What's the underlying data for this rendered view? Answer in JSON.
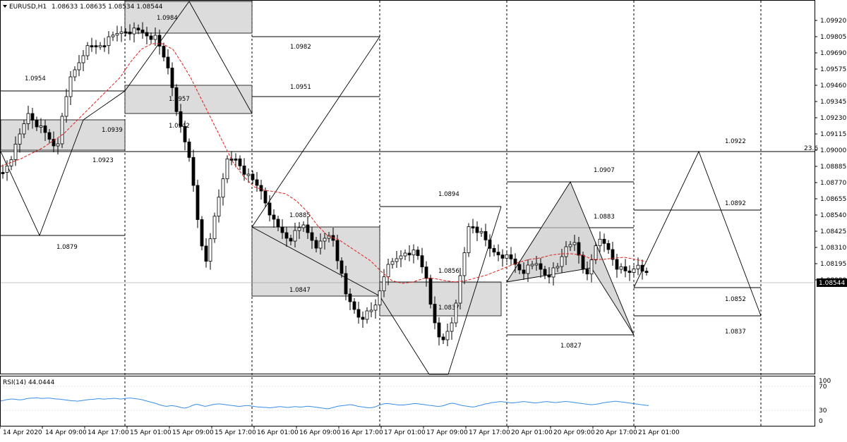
{
  "window": {
    "menu_icon": "triangle-down-icon",
    "symbol": "EURUSD,H1",
    "ohlc": "1.08633 1.08635 1.08534 1.08544"
  },
  "price_axis": {
    "ticks": [
      "1.09920",
      "1.09805",
      "1.09690",
      "1.09575",
      "1.09460",
      "1.09345",
      "1.09230",
      "1.09115",
      "1.09000",
      "1.08885",
      "1.08770",
      "1.08655",
      "1.08540",
      "1.08425",
      "1.08310",
      "1.08195",
      "1.08080"
    ],
    "current_price": "1.08544",
    "fib_tag": "23.6"
  },
  "time_axis": {
    "labels": [
      "14 Apr 2020",
      "14 Apr 09:00",
      "14 Apr 17:00",
      "15 Apr 01:00",
      "15 Apr 09:00",
      "15 Apr 17:00",
      "16 Apr 01:00",
      "16 Apr 09:00",
      "16 Apr 17:00",
      "17 Apr 01:00",
      "17 Apr 09:00",
      "17 Apr 17:00",
      "20 Apr 01:00",
      "20 Apr 09:00",
      "20 Apr 17:00",
      "21 Apr 01:00"
    ]
  },
  "rsi": {
    "label": "RSI(14) 44.0444",
    "ticks": [
      "100",
      "70",
      "30",
      "0"
    ],
    "values": [
      58,
      59,
      61,
      62,
      63,
      63,
      62,
      61,
      61,
      62,
      64,
      65,
      66,
      66,
      67,
      66,
      65,
      65,
      66,
      66,
      65,
      64,
      63,
      63,
      62,
      61,
      60,
      59,
      58,
      58,
      57,
      58,
      59,
      60,
      61,
      62,
      62,
      63,
      64,
      64,
      63,
      63,
      64,
      64,
      65,
      65,
      64,
      63,
      64,
      65,
      66,
      66,
      65,
      64,
      63,
      62,
      60,
      58,
      56,
      54,
      52,
      50,
      47,
      45,
      43,
      42,
      43,
      44,
      43,
      42,
      40,
      38,
      37,
      38,
      41,
      44,
      47,
      48,
      46,
      44,
      42,
      43,
      45,
      47,
      48,
      49,
      49,
      48,
      47,
      46,
      45,
      44,
      43,
      42,
      42,
      43,
      44,
      44,
      43,
      42,
      41,
      40,
      40,
      39,
      39,
      38,
      38,
      39,
      40,
      41,
      41,
      40,
      39,
      39,
      40,
      41,
      41,
      40,
      40,
      41,
      42,
      42,
      41,
      40,
      39,
      38,
      37,
      36,
      35,
      36,
      38,
      40,
      42,
      43,
      44,
      45,
      46,
      47,
      46,
      44,
      42,
      41,
      40,
      39,
      38,
      38,
      39,
      41,
      44,
      47,
      49,
      50,
      50,
      49,
      48,
      47,
      46,
      46,
      46,
      47,
      48,
      49,
      50,
      50,
      49,
      48,
      47,
      46,
      45,
      44,
      43,
      42,
      42,
      43,
      45,
      48,
      50,
      51,
      50,
      48,
      46,
      44,
      43,
      42,
      41,
      40,
      41,
      43,
      45,
      47,
      49,
      50,
      52,
      53,
      54,
      55,
      56,
      55,
      54,
      53,
      52,
      52,
      53,
      54,
      55,
      56,
      55,
      54,
      53,
      52,
      52,
      53,
      54,
      55,
      56,
      55,
      54,
      53,
      53,
      54,
      55,
      56,
      56,
      55,
      54,
      53,
      52,
      51,
      50,
      49,
      48,
      47,
      47,
      48,
      49,
      50,
      52,
      53,
      54,
      55,
      56,
      57,
      56,
      55,
      54,
      53,
      52,
      51,
      50,
      49,
      48,
      47,
      46,
      45,
      44
    ]
  },
  "levels": [
    {
      "text": "1.0984"
    },
    {
      "text": "1.0982"
    },
    {
      "text": "1.0954"
    },
    {
      "text": "1.0951"
    },
    {
      "text": "1.0957"
    },
    {
      "text": "1.0942"
    },
    {
      "text": "1.0939"
    },
    {
      "text": "1.0923"
    },
    {
      "text": "1.0879"
    },
    {
      "text": "1.0894"
    },
    {
      "text": "1.0885"
    },
    {
      "text": "1.0847"
    },
    {
      "text": "1.0856"
    },
    {
      "text": "1.0837"
    },
    {
      "text": "1.0907"
    },
    {
      "text": "1.0883"
    },
    {
      "text": "1.0827"
    },
    {
      "text": "1.0922"
    },
    {
      "text": "1.0892"
    },
    {
      "text": "1.0852"
    },
    {
      "text": "1.0837"
    }
  ],
  "colors": {
    "background": "#ffffff",
    "grid": "#000000",
    "bull_candle": "#ffffff",
    "bear_candle": "#000000",
    "moving_average": "#e0201a",
    "rsi_line": "#3a8ee8",
    "zone_fill": "#dcdcdc",
    "price_tag_bg": "#000000"
  }
}
